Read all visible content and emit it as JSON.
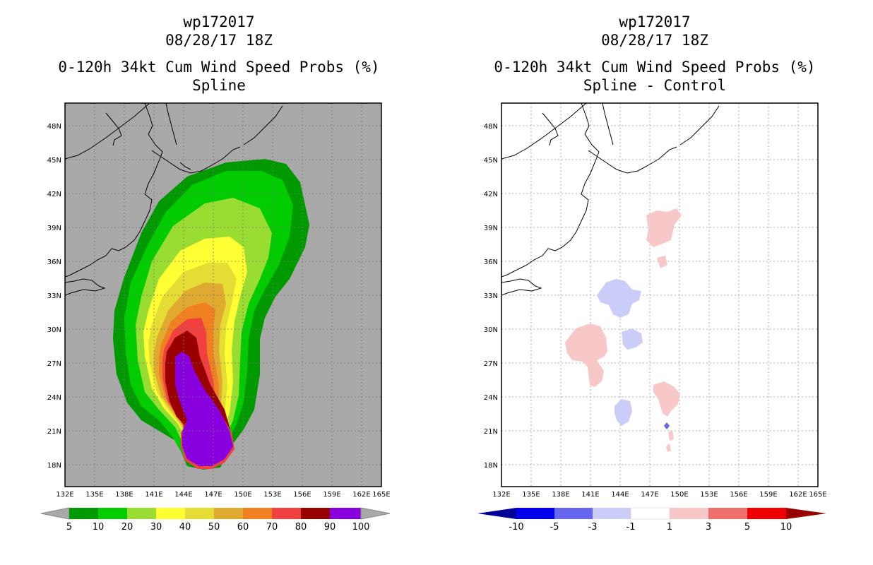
{
  "colors": {
    "land_background": "#a9a9a9",
    "prob_levels": [
      "#009900",
      "#00cc00",
      "#99dd33",
      "#ffff33",
      "#e5dd33",
      "#e0a930",
      "#f08020",
      "#f04040",
      "#990000",
      "#8800dd"
    ],
    "diff_levels": [
      "#000099",
      "#0000ee",
      "#6666ee",
      "#ccccf8",
      "#ffffff",
      "#f8c8c8",
      "#f07070",
      "#ee0000",
      "#990000"
    ]
  },
  "left_panel": {
    "title_lines": [
      "wp172017",
      "08/28/17 18Z",
      "0-120h 34kt Cum Wind Speed Probs (%)",
      "Spline"
    ],
    "lat_ticks": [
      "48N",
      "45N",
      "42N",
      "39N",
      "36N",
      "33N",
      "30N",
      "27N",
      "24N",
      "21N",
      "18N"
    ],
    "lon_ticks": [
      "132E",
      "135E",
      "138E",
      "141E",
      "144E",
      "147E",
      "150E",
      "153E",
      "156E",
      "159E",
      "162E",
      "165E"
    ],
    "colorbar_labels": [
      "5",
      "10",
      "20",
      "30",
      "40",
      "50",
      "60",
      "70",
      "80",
      "90",
      "100"
    ]
  },
  "right_panel": {
    "title_lines": [
      "wp172017",
      "08/28/17 18Z",
      "0-120h 34kt Cum Wind Speed Probs (%)",
      "Spline - Control"
    ],
    "lat_ticks": [
      "48N",
      "45N",
      "42N",
      "39N",
      "36N",
      "33N",
      "30N",
      "27N",
      "24N",
      "21N",
      "18N"
    ],
    "lon_ticks": [
      "132E",
      "135E",
      "138E",
      "141E",
      "144E",
      "147E",
      "150E",
      "153E",
      "156E",
      "159E",
      "162E",
      "165E"
    ],
    "colorbar_labels": [
      "-10",
      "-5",
      "-3",
      "-1",
      "1",
      "3",
      "5",
      "10"
    ]
  }
}
